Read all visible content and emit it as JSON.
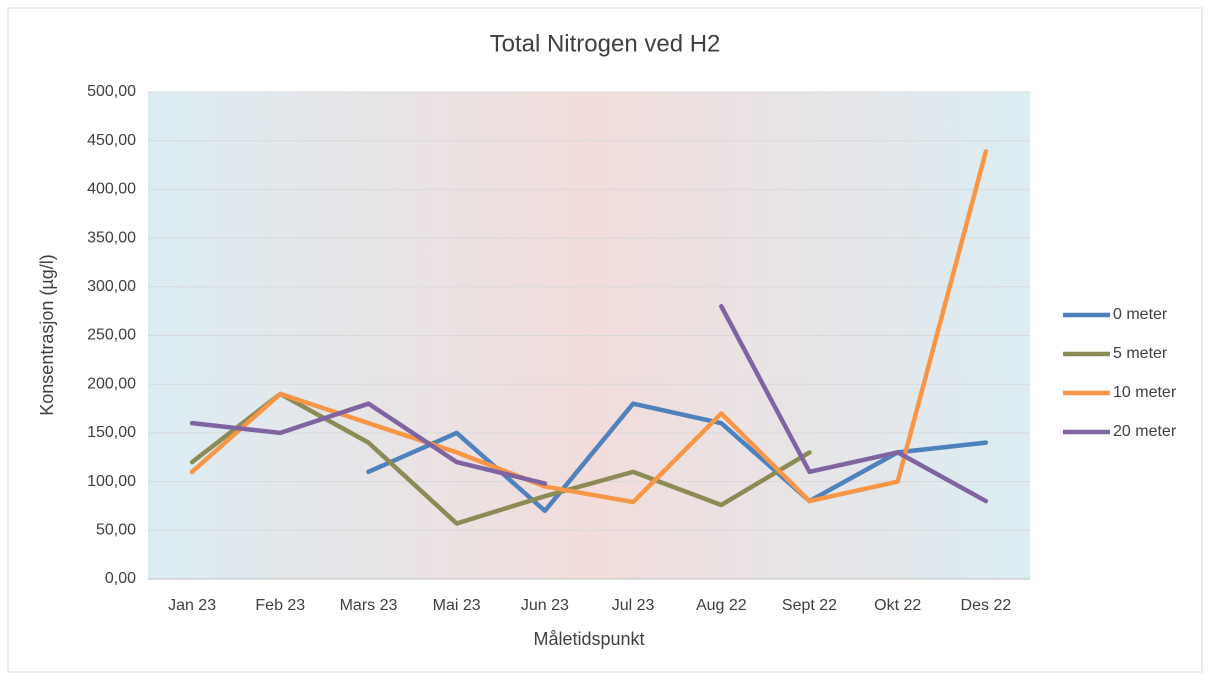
{
  "chart_data": {
    "type": "line",
    "title": "Total Nitrogen ved H2",
    "x_label": "Måletidspunkt",
    "y_label": "Konsentrasjon (µg/l)",
    "categories": [
      "Jan 23",
      "Feb 23",
      "Mars 23",
      "Mai 23",
      "Jun 23",
      "Jul 23",
      "Aug 22",
      "Sept 22",
      "Okt 22",
      "Des 22"
    ],
    "series": [
      {
        "name": "0 meter",
        "color": "#4f81bd",
        "values": [
          null,
          null,
          110,
          150,
          70,
          180,
          160,
          80,
          130,
          140
        ]
      },
      {
        "name": "5 meter",
        "color": "#8c8a55",
        "values": [
          120,
          190,
          140,
          57,
          85,
          110,
          76,
          130,
          null,
          null
        ]
      },
      {
        "name": "10 meter",
        "color": "#f79646",
        "values": [
          110,
          190,
          160,
          130,
          95,
          79,
          170,
          80,
          100,
          439
        ]
      },
      {
        "name": "20 meter",
        "color": "#8064a2",
        "values": [
          160,
          150,
          180,
          120,
          98,
          null,
          280,
          110,
          130,
          80
        ]
      }
    ],
    "ylim": [
      0,
      500
    ],
    "yticks": [
      {
        "value": 0,
        "label": "0,00"
      },
      {
        "value": 50,
        "label": "50,00"
      },
      {
        "value": 100,
        "label": "100,00"
      },
      {
        "value": 150,
        "label": "150,00"
      },
      {
        "value": 200,
        "label": "200,00"
      },
      {
        "value": 250,
        "label": "250,00"
      },
      {
        "value": 300,
        "label": "300,00"
      },
      {
        "value": 350,
        "label": "350,00"
      },
      {
        "value": 400,
        "label": "400,00"
      },
      {
        "value": 450,
        "label": "450,00"
      },
      {
        "value": 500,
        "label": "500,00"
      }
    ],
    "grid": true,
    "legend": "right"
  }
}
